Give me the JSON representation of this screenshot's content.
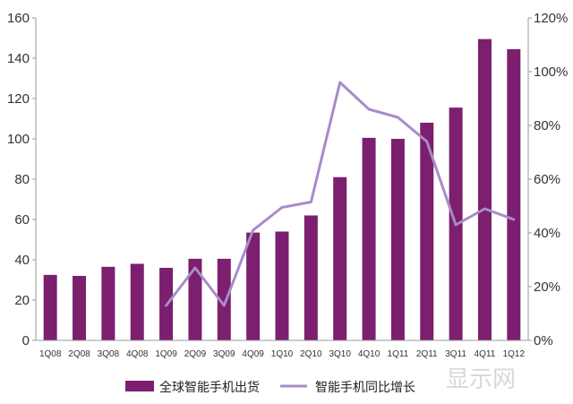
{
  "chart_data": {
    "type": "bar",
    "categories": [
      "1Q08",
      "2Q08",
      "3Q08",
      "4Q08",
      "1Q09",
      "2Q09",
      "3Q09",
      "4Q09",
      "1Q10",
      "2Q10",
      "3Q10",
      "4Q10",
      "1Q11",
      "2Q11",
      "3Q11",
      "4Q11",
      "1Q12"
    ],
    "series": [
      {
        "name": "全球智能手机出货",
        "type": "bar",
        "axis": "left",
        "color": "#7b1f6e",
        "values": [
          32.5,
          32,
          36.5,
          38,
          36,
          40.5,
          40.5,
          53.5,
          54,
          62,
          81,
          100.5,
          100,
          108,
          115.5,
          149.5,
          144.5
        ]
      },
      {
        "name": "智能手机同比增长",
        "type": "line",
        "axis": "right",
        "color": "#a98bc8",
        "values": [
          null,
          null,
          null,
          null,
          13,
          27,
          13,
          41,
          49.5,
          51.5,
          96,
          86,
          83,
          74,
          43,
          49,
          45
        ]
      }
    ],
    "ylim_left": [
      0,
      160
    ],
    "yticks_left": [
      "0",
      "20",
      "40",
      "60",
      "80",
      "100",
      "120",
      "140",
      "160"
    ],
    "ylim_right": [
      0,
      120
    ],
    "yticks_right": [
      "0%",
      "20%",
      "40%",
      "60%",
      "80%",
      "100%",
      "120%"
    ],
    "grid": false,
    "legend_position": "bottom"
  },
  "watermark": "显示网"
}
